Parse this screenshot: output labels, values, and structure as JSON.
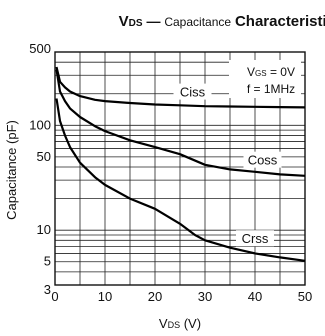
{
  "chart_data": {
    "type": "line",
    "title": {
      "vds_symbol": "V",
      "vds_sub": "DS",
      "dash": " — ",
      "capacitance_word": "Capacitance",
      "characteristics": "Characteristics"
    },
    "xlabel": {
      "symbol": "V",
      "sub": "DS",
      "unit": " (V)"
    },
    "ylabel": "Capacitance  (pF)",
    "xlim": [
      0,
      50
    ],
    "ylim": [
      3,
      500
    ],
    "yscale": "log",
    "grid": true,
    "x_ticks": [
      0,
      10,
      20,
      30,
      40,
      50
    ],
    "x_tick_labels": [
      "0",
      "10",
      "20",
      "30",
      "40",
      "50"
    ],
    "y_ticks": [
      3,
      5,
      10,
      50,
      100,
      500
    ],
    "y_tick_labels": [
      "3",
      "5",
      "10",
      "50",
      "100",
      "500"
    ],
    "conditions": {
      "vgs": {
        "symbol": "V",
        "sub": "GS",
        "rest": " = 0V"
      },
      "freq": "f = 1MHz"
    },
    "series": [
      {
        "name": "Ciss",
        "x": [
          0.3,
          1,
          2,
          3,
          5,
          8,
          10,
          15,
          20,
          25,
          30,
          35,
          40,
          45,
          50
        ],
        "y": [
          360,
          260,
          230,
          210,
          190,
          175,
          170,
          163,
          158,
          155,
          152,
          151,
          150,
          149,
          148
        ]
      },
      {
        "name": "Coss",
        "x": [
          0.3,
          1,
          2,
          3,
          5,
          8,
          10,
          15,
          20,
          25,
          30,
          35,
          40,
          45,
          50
        ],
        "y": [
          340,
          210,
          170,
          145,
          120,
          98,
          88,
          72,
          62,
          53,
          42,
          38,
          36,
          34,
          33
        ]
      },
      {
        "name": "Crss",
        "x": [
          0.3,
          1,
          2,
          3,
          5,
          8,
          10,
          15,
          20,
          25,
          28,
          30,
          35,
          40,
          45,
          50
        ],
        "y": [
          180,
          110,
          80,
          62,
          44,
          32,
          27,
          20,
          16,
          11.5,
          9,
          8,
          6.8,
          6,
          5.5,
          5.1
        ]
      }
    ]
  }
}
